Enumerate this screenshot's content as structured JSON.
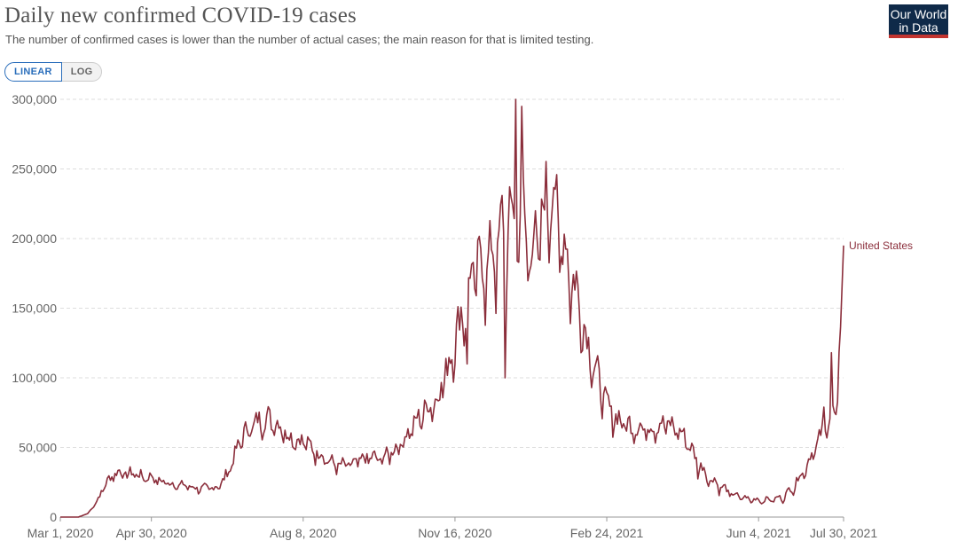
{
  "header": {
    "title": "Daily new confirmed COVID-19 cases",
    "subtitle": "The number of confirmed cases is lower than the number of actual cases; the main reason for that is limited testing.",
    "logo_line1": "Our World",
    "logo_line2": "in Data"
  },
  "controls": {
    "linear_label": "LINEAR",
    "log_label": "LOG",
    "active": "LINEAR"
  },
  "colors": {
    "series": "#8b2e3b",
    "grid": "#dddddd",
    "accent": "#2a6ebb",
    "logo_bg": "#0f2a49",
    "logo_bar": "#c2342f"
  },
  "chart_data": {
    "type": "line",
    "title": "Daily new confirmed COVID-19 cases",
    "xlabel": "",
    "ylabel": "",
    "x_range": [
      0,
      516
    ],
    "ylim": [
      0,
      300000
    ],
    "y_ticks": [
      0,
      50000,
      100000,
      150000,
      200000,
      250000,
      300000
    ],
    "y_tick_labels": [
      "0",
      "50,000",
      "100,000",
      "150,000",
      "200,000",
      "250,000",
      "300,000"
    ],
    "x_ticks": [
      0,
      60,
      160,
      260,
      360,
      460,
      516
    ],
    "x_tick_labels": [
      "Mar 1, 2020",
      "Apr 30, 2020",
      "Aug 8, 2020",
      "Nov 16, 2020",
      "Feb 24, 2021",
      "Jun 4, 2021",
      "Jul 30, 2021"
    ],
    "grid": true,
    "series": [
      {
        "name": "United States",
        "anchor_days": [
          0,
          12,
          18,
          24,
          28,
          32,
          36,
          40,
          44,
          48,
          52,
          56,
          60,
          64,
          68,
          72,
          76,
          80,
          84,
          88,
          92,
          96,
          100,
          104,
          108,
          112,
          116,
          120,
          124,
          128,
          132,
          136,
          140,
          144,
          148,
          152,
          156,
          160,
          164,
          168,
          172,
          176,
          180,
          184,
          188,
          192,
          196,
          200,
          204,
          208,
          212,
          216,
          220,
          224,
          228,
          232,
          236,
          240,
          244,
          248,
          252,
          256,
          260,
          264,
          268,
          272,
          276,
          280,
          284,
          288,
          292,
          296,
          300,
          304,
          308,
          312,
          316,
          320,
          324,
          328,
          332,
          336,
          340,
          344,
          348,
          352,
          356,
          360,
          364,
          368,
          372,
          376,
          380,
          384,
          388,
          392,
          396,
          400,
          404,
          408,
          412,
          416,
          420,
          424,
          428,
          432,
          436,
          440,
          444,
          448,
          452,
          456,
          460,
          464,
          468,
          472,
          476,
          480,
          484,
          488,
          492,
          496,
          500,
          504,
          508,
          512,
          516
        ],
        "anchor_values": [
          0,
          0,
          2500,
          11000,
          20000,
          27000,
          31500,
          32000,
          30000,
          32000,
          29500,
          28000,
          29000,
          26000,
          25000,
          24500,
          22500,
          23000,
          22000,
          21000,
          20000,
          21000,
          20500,
          22000,
          27000,
          36000,
          47000,
          58000,
          63000,
          66000,
          69000,
          70000,
          69000,
          66000,
          61000,
          57000,
          55000,
          54000,
          51000,
          46000,
          45000,
          41000,
          38000,
          36500,
          37500,
          37000,
          39500,
          41000,
          42500,
          42000,
          41500,
          45000,
          48000,
          52000,
          58000,
          64000,
          70000,
          76000,
          80000,
          84000,
          96000,
          110000,
          125000,
          145000,
          158000,
          172000,
          178000,
          180000,
          183000,
          192000,
          205000,
          210000,
          212000,
          218000,
          195000,
          190000,
          200000,
          225000,
          237000,
          205000,
          192000,
          176000,
          158000,
          141000,
          122000,
          107000,
          92000,
          80000,
          72000,
          70000,
          66000,
          65000,
          64000,
          63000,
          64000,
          65000,
          66000,
          66000,
          64000,
          61000,
          56000,
          48000,
          39000,
          32000,
          27000,
          24000,
          21000,
          18000,
          15500,
          14500,
          13000,
          12500,
          12000,
          12000,
          12500,
          13000,
          14000,
          18000,
          23000,
          30000,
          38000,
          47000,
          55000,
          65000,
          72000,
          78000,
          195000
        ]
      }
    ],
    "series_end_label": "United States",
    "peak_value": 300000
  }
}
